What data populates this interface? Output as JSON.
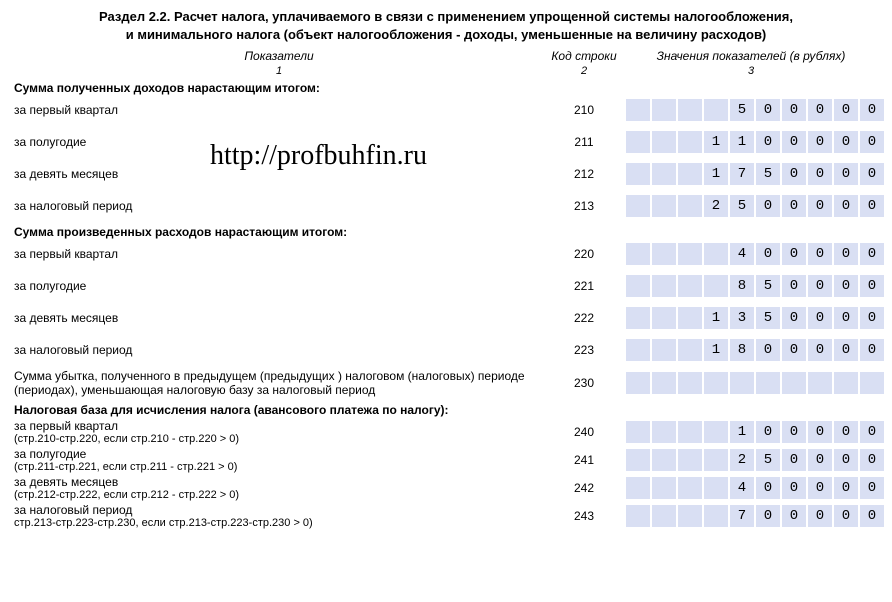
{
  "title_line1": "Раздел 2.2. Расчет налога, уплачиваемого в связи с применением упрощенной системы налогообложения,",
  "title_line2": "и минимального налога (объект налогообложения - доходы, уменьшенные на величину расходов)",
  "header": {
    "col1": "Показатели",
    "col1_sub": "1",
    "col2": "Код строки",
    "col2_sub": "2",
    "col3": "Значения показателей (в рублях)",
    "col3_sub": "3"
  },
  "watermark": "http://profbuhfin.ru",
  "num_cells": 10,
  "cell_bg": "#d9dff3",
  "sections": [
    {
      "heading": "Сумма полученных доходов нарастающим итогом:",
      "rows": [
        {
          "label": "за первый квартал",
          "code": "210",
          "value": "500000"
        },
        {
          "label": "за полугодие",
          "code": "211",
          "value": "1100000"
        },
        {
          "label": "за девять месяцев",
          "code": "212",
          "value": "1750000"
        },
        {
          "label": "за налоговый период",
          "code": "213",
          "value": "2500000"
        }
      ]
    },
    {
      "heading": "Сумма произведенных расходов нарастающим итогом:",
      "rows": [
        {
          "label": "за первый квартал",
          "code": "220",
          "value": "400000"
        },
        {
          "label": "за полугодие",
          "code": "221",
          "value": "850000"
        },
        {
          "label": "за девять месяцев",
          "code": "222",
          "value": "1350000"
        },
        {
          "label": "за налоговый период",
          "code": "223",
          "value": "1800000"
        }
      ]
    },
    {
      "heading": null,
      "rows": [
        {
          "label": "Сумма убытка, полученного в предыдущем (предыдущих ) налоговом (налоговых) периоде (периодах), уменьшающая налоговую базу за налоговый период",
          "code": "230",
          "value": ""
        }
      ]
    },
    {
      "heading": "Налоговая база для исчисления налога (авансового платежа по налогу):",
      "rows": [
        {
          "label": "за первый квартал",
          "sub": "(стр.210-стр.220, если стр.210 - стр.220 > 0)",
          "code": "240",
          "value": "100000"
        },
        {
          "label": "за полугодие",
          "sub": "(стр.211-стр.221, если стр.211 - стр.221 > 0)",
          "code": "241",
          "value": "250000"
        },
        {
          "label": "за девять месяцев",
          "sub": "(стр.212-стр.222, если стр.212 - стр.222 > 0)",
          "code": "242",
          "value": "400000"
        },
        {
          "label": "за налоговый период",
          "sub": "стр.213-стр.223-стр.230, если стр.213-стр.223-стр.230 > 0)",
          "code": "243",
          "value": "700000"
        }
      ]
    }
  ]
}
